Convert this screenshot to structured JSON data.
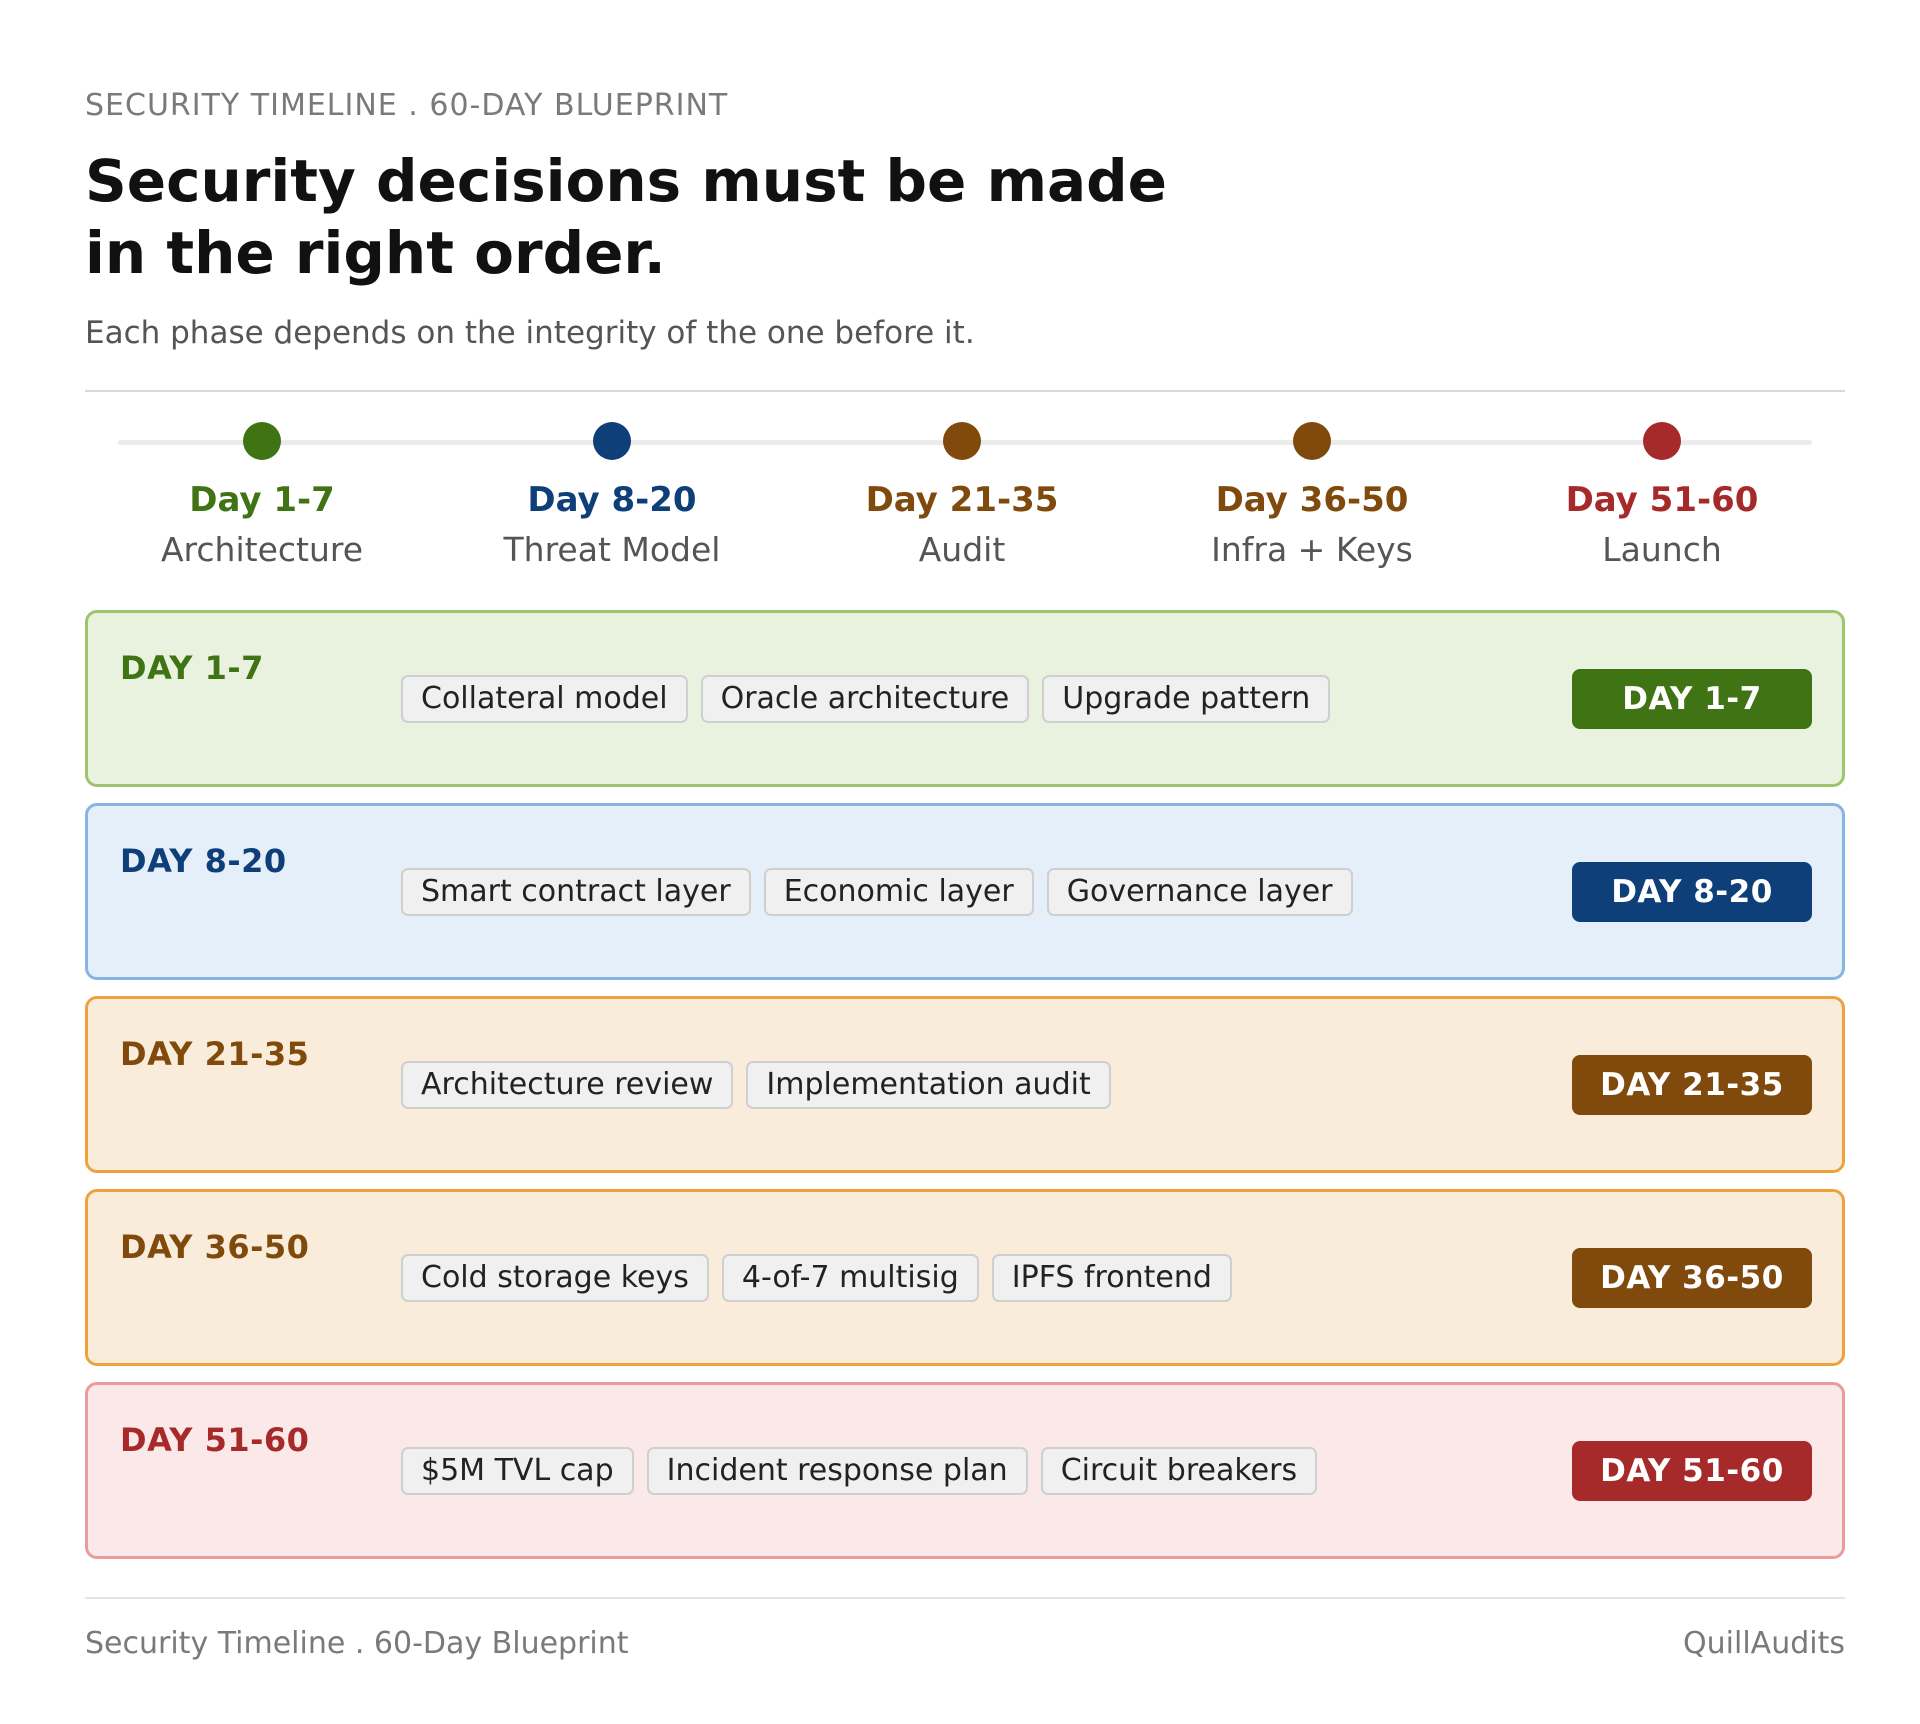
{
  "header": {
    "eyebrow": "SECURITY TIMELINE . 60-DAY BLUEPRINT",
    "title_line1": "Security decisions must be made",
    "title_line2": "in the right order.",
    "subtitle": "Each phase depends on the integrity of the one before it."
  },
  "timeline": [
    {
      "day": "Day 1-7",
      "name": "Architecture",
      "color": "#3f7314"
    },
    {
      "day": "Day 8-20",
      "name": "Threat Model",
      "color": "#0e3f78"
    },
    {
      "day": "Day 21-35",
      "name": "Audit",
      "color": "#7f4a0c"
    },
    {
      "day": "Day 36-50",
      "name": "Infra + Keys",
      "color": "#7f4a0c"
    },
    {
      "day": "Day 51-60",
      "name": "Launch",
      "color": "#a62a2a"
    }
  ],
  "phases": [
    {
      "label": "DAY 1-7",
      "badge": "DAY 1-7",
      "color": "#3f7314",
      "bg": "#e9f2de",
      "border": "#9ec56e",
      "items": [
        "Collateral model",
        "Oracle architecture",
        "Upgrade pattern"
      ]
    },
    {
      "label": "DAY 8-20",
      "badge": "DAY 8-20",
      "color": "#0e3f78",
      "bg": "#e5eff9",
      "border": "#86b4e4",
      "items": [
        "Smart contract layer",
        "Economic layer",
        "Governance layer"
      ]
    },
    {
      "label": "DAY 21-35",
      "badge": "DAY 21-35",
      "color": "#7f4a0c",
      "bg": "#faecdb",
      "border": "#eea23e",
      "items": [
        "Architecture review",
        "Implementation audit"
      ]
    },
    {
      "label": "DAY 36-50",
      "badge": "DAY 36-50",
      "color": "#7f4a0c",
      "bg": "#faecdb",
      "border": "#eea23e",
      "items": [
        "Cold storage keys",
        "4-of-7 multisig",
        "IPFS frontend"
      ]
    },
    {
      "label": "DAY 51-60",
      "badge": "DAY 51-60",
      "color": "#a62a2a",
      "bg": "#fbe9e9",
      "border": "#ea9c9c",
      "items": [
        "$5M TVL cap",
        "Incident response plan",
        "Circuit breakers"
      ]
    }
  ],
  "footer": {
    "left": "Security Timeline . 60-Day Blueprint",
    "right": "QuillAudits"
  }
}
